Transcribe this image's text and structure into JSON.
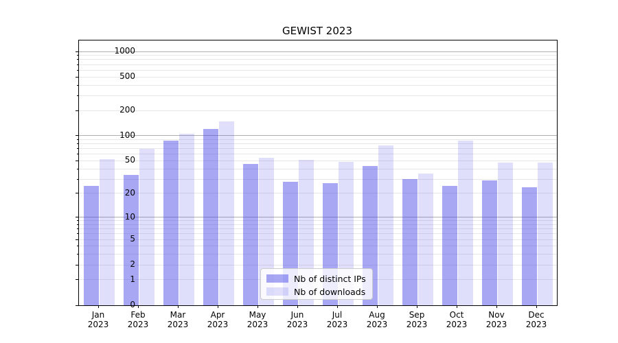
{
  "chart_data": {
    "type": "bar",
    "title": "GEWIST 2023",
    "categories": [
      "Jan",
      "Feb",
      "Mar",
      "Apr",
      "May",
      "Jun",
      "Jul",
      "Aug",
      "Sep",
      "Oct",
      "Nov",
      "Dec"
    ],
    "year": "2023",
    "series": [
      {
        "name": "Nb of distinct IPs",
        "color": "rgba(64,64,232,0.46)",
        "values": [
          25,
          34,
          87,
          120,
          46,
          28,
          27,
          43,
          30,
          25,
          29,
          24
        ]
      },
      {
        "name": "Nb of downloads",
        "color": "rgba(64,64,232,0.17)",
        "values": [
          52,
          70,
          106,
          148,
          54,
          51,
          49,
          77,
          35,
          87,
          48,
          48
        ]
      }
    ],
    "xlabel": "",
    "ylabel": "",
    "y_scale": "log10(value+1)",
    "y_axis": {
      "labeled_ticks": [
        0,
        1,
        2,
        5,
        10,
        20,
        50,
        100,
        200,
        500,
        1000
      ],
      "major_gridlines": [
        10,
        100,
        1000
      ],
      "minor_gridlines": [
        1,
        2,
        3,
        4,
        5,
        6,
        7,
        8,
        9,
        20,
        30,
        40,
        50,
        60,
        70,
        80,
        90,
        200,
        300,
        400,
        500,
        600,
        700,
        800,
        900
      ],
      "ylim": [
        0,
        1350
      ]
    },
    "legend": {
      "position": "lower center"
    },
    "grid": true,
    "colors": {
      "major_grid": "#b0b0b0",
      "minor_grid": "#e7e7e7",
      "axis": "#000000",
      "legend_border": "#cccccc",
      "legend_bg": "rgba(255,255,255,0.8)",
      "text": "#000000"
    }
  }
}
